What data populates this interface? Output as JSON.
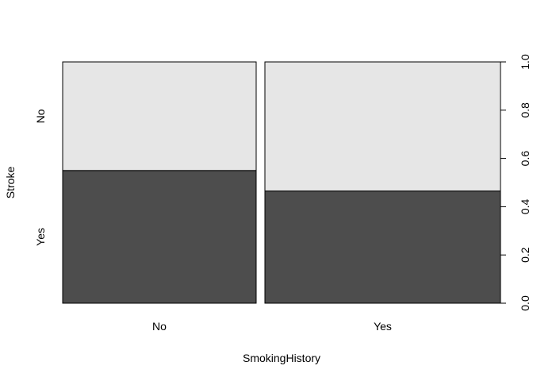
{
  "chart_data": {
    "type": "bar",
    "subtype": "spineplot",
    "title": "",
    "xlabel": "SmokingHistory",
    "ylabel": "Stroke",
    "categories": [
      "No",
      "Yes"
    ],
    "x_widths": [
      0.451,
      0.549
    ],
    "series": [
      {
        "name": "Yes",
        "values": [
          0.55,
          0.465
        ],
        "color": "#4d4d4d"
      },
      {
        "name": "No",
        "values": [
          0.45,
          0.535
        ],
        "color": "#e6e6e6"
      }
    ],
    "y_right_axis": {
      "ylim": [
        0,
        1
      ],
      "ticks": [
        0.0,
        0.2,
        0.4,
        0.6,
        0.8,
        1.0
      ],
      "tick_labels": [
        "0.0",
        "0.2",
        "0.4",
        "0.6",
        "0.8",
        "1.0"
      ]
    },
    "y_left_category_labels": [
      "Yes",
      "No"
    ],
    "grid": false,
    "legend": "none"
  }
}
